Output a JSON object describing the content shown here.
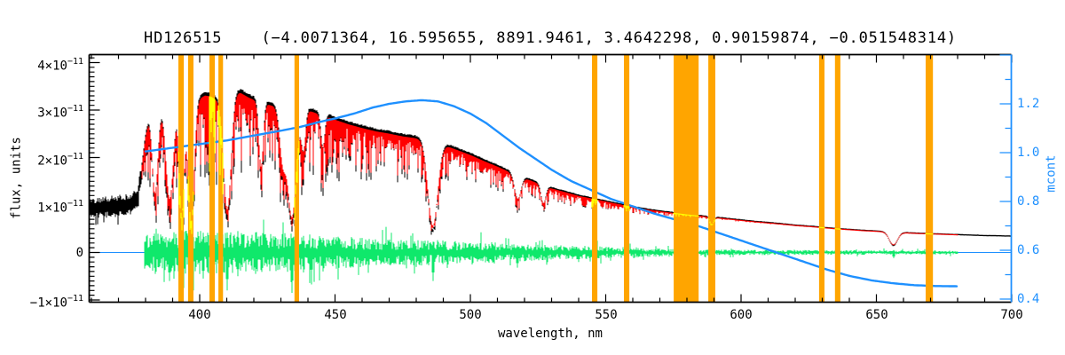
{
  "chart_data": {
    "type": "line",
    "title": "HD126515    (−4.0071364, 16.595655, 8891.9461, 3.4642298, 0.90159874, −0.051548314)",
    "xlabel": "wavelength, nm",
    "ylabel_left": "flux, units",
    "ylabel_right": "mcont",
    "xlim": [
      359,
      700
    ],
    "ylim_left_e11": [
      -1.06,
      4.18
    ],
    "ylim_right": [
      0.385,
      1.403
    ],
    "x_ticks": {
      "major": [
        400,
        450,
        500,
        550,
        600,
        650,
        700
      ],
      "minor_step": 10
    },
    "y_left_ticks": [
      {
        "v": 4,
        "base": "4×10",
        "sup": "−11"
      },
      {
        "v": 3,
        "base": "3×10",
        "sup": "−11"
      },
      {
        "v": 2,
        "base": "2×10",
        "sup": "−11"
      },
      {
        "v": 1,
        "base": "1×10",
        "sup": "−11"
      },
      {
        "v": 0,
        "base": "0",
        "sup": ""
      },
      {
        "v": -1,
        "base": "−1×10",
        "sup": "−11"
      }
    ],
    "y_right_ticks": [
      {
        "v": 1.2,
        "label": "1.2"
      },
      {
        "v": 1.0,
        "label": "1.0"
      },
      {
        "v": 0.8,
        "label": "0.8"
      },
      {
        "v": 0.6,
        "label": "0.6"
      },
      {
        "v": 0.4,
        "label": "0.4"
      }
    ],
    "colors": {
      "observed": "#000000",
      "model": "#FF0000",
      "residual": "#0FE86B",
      "mcont": "#1E90FF",
      "mask_band": "#FFA500",
      "mask_overlay": "#FFFF00",
      "axis": "#000000",
      "right_axis": "#1E90FF",
      "background": "#FFFFFF"
    },
    "series": {
      "observed": {
        "range_nm": [
          359,
          700
        ],
        "continuum_e11": [
          [
            360,
            0.93
          ],
          [
            364,
            0.95
          ],
          [
            368,
            0.97
          ],
          [
            372,
            1.0
          ],
          [
            375,
            1.04
          ],
          [
            377,
            1.15
          ],
          [
            378,
            1.55
          ],
          [
            379,
            2.05
          ],
          [
            380,
            2.5
          ],
          [
            381,
            2.8
          ],
          [
            382,
            2.92
          ],
          [
            384,
            2.96
          ],
          [
            386,
            3.04
          ],
          [
            388,
            3.08
          ],
          [
            390,
            3.1
          ],
          [
            392,
            3.14
          ],
          [
            394,
            3.16
          ],
          [
            396,
            3.2
          ],
          [
            398,
            3.26
          ],
          [
            400,
            3.32
          ],
          [
            402,
            3.38
          ],
          [
            404,
            3.36
          ],
          [
            406,
            3.3
          ],
          [
            408,
            3.34
          ],
          [
            411,
            3.36
          ],
          [
            413,
            3.46
          ],
          [
            415,
            3.44
          ],
          [
            418,
            3.34
          ],
          [
            421,
            3.26
          ],
          [
            424,
            3.2
          ],
          [
            427,
            3.16
          ],
          [
            430,
            3.1
          ],
          [
            434,
            3.06
          ],
          [
            438,
            3.1
          ],
          [
            442,
            3.02
          ],
          [
            446,
            2.94
          ],
          [
            450,
            2.86
          ],
          [
            455,
            2.76
          ],
          [
            460,
            2.68
          ],
          [
            465,
            2.61
          ],
          [
            470,
            2.56
          ],
          [
            475,
            2.5
          ],
          [
            480,
            2.46
          ],
          [
            486,
            2.42
          ],
          [
            490,
            2.32
          ],
          [
            495,
            2.21
          ],
          [
            500,
            2.1
          ],
          [
            505,
            1.97
          ],
          [
            510,
            1.85
          ],
          [
            515,
            1.72
          ],
          [
            520,
            1.6
          ],
          [
            525,
            1.49
          ],
          [
            530,
            1.38
          ],
          [
            535,
            1.3
          ],
          [
            540,
            1.22
          ],
          [
            545,
            1.16
          ],
          [
            550,
            1.1
          ],
          [
            555,
            1.04
          ],
          [
            560,
            0.98
          ],
          [
            565,
            0.93
          ],
          [
            570,
            0.89
          ],
          [
            575,
            0.855
          ],
          [
            580,
            0.82
          ],
          [
            585,
            0.79
          ],
          [
            590,
            0.76
          ],
          [
            595,
            0.73
          ],
          [
            600,
            0.7
          ],
          [
            605,
            0.67
          ],
          [
            610,
            0.645
          ],
          [
            615,
            0.62
          ],
          [
            620,
            0.59
          ],
          [
            625,
            0.57
          ],
          [
            630,
            0.545
          ],
          [
            635,
            0.52
          ],
          [
            640,
            0.5
          ],
          [
            645,
            0.48
          ],
          [
            650,
            0.465
          ],
          [
            655,
            0.45
          ],
          [
            660,
            0.435
          ],
          [
            665,
            0.42
          ],
          [
            670,
            0.41
          ],
          [
            675,
            0.4
          ],
          [
            680,
            0.39
          ],
          [
            685,
            0.38
          ],
          [
            690,
            0.37
          ],
          [
            695,
            0.365
          ],
          [
            700,
            0.36
          ]
        ],
        "absorption_lines": [
          [
            383.5,
            0.6,
            1.0
          ],
          [
            388.9,
            0.66,
            1.3
          ],
          [
            393.37,
            0.8,
            0.9
          ],
          [
            396.85,
            0.84,
            1.1
          ],
          [
            410.17,
            0.76,
            1.4
          ],
          [
            422.67,
            0.45,
            0.8
          ],
          [
            430.8,
            0.38,
            1.2
          ],
          [
            434.05,
            0.79,
            1.6
          ],
          [
            438.3,
            0.3,
            0.8
          ],
          [
            445.5,
            0.25,
            0.7
          ],
          [
            486.13,
            0.8,
            1.8
          ],
          [
            517.5,
            0.32,
            1.2
          ],
          [
            527.0,
            0.28,
            0.9
          ],
          [
            589.2,
            0.22,
            0.7
          ],
          [
            656.28,
            0.64,
            1.5
          ]
        ],
        "line_forest_maxdepth": [
          [
            378,
            0.62
          ],
          [
            395,
            0.62
          ],
          [
            410,
            0.6
          ],
          [
            425,
            0.55
          ],
          [
            440,
            0.5
          ],
          [
            460,
            0.45
          ],
          [
            480,
            0.4
          ],
          [
            500,
            0.34
          ],
          [
            520,
            0.28
          ],
          [
            540,
            0.22
          ],
          [
            560,
            0.16
          ],
          [
            580,
            0.1
          ],
          [
            600,
            0.07
          ],
          [
            620,
            0.055
          ],
          [
            640,
            0.05
          ],
          [
            660,
            0.045
          ],
          [
            680,
            0.04
          ],
          [
            700,
            0.035
          ]
        ],
        "blue_edge_noise_band_e11": {
          "range_nm": [
            359,
            378.3
          ],
          "half_width": 0.17
        }
      },
      "model": {
        "range_nm": [
          378.5,
          680
        ],
        "continuum_scale": 0.978,
        "forest_scale": 0.83
      },
      "residual": {
        "range_nm": [
          379.4,
          680
        ],
        "zero_e11": 0,
        "amplitude_e11": [
          [
            379,
            0.28
          ],
          [
            385,
            0.31
          ],
          [
            395,
            0.34
          ],
          [
            405,
            0.34
          ],
          [
            415,
            0.33
          ],
          [
            425,
            0.31
          ],
          [
            435,
            0.3
          ],
          [
            445,
            0.27
          ],
          [
            455,
            0.24
          ],
          [
            465,
            0.22
          ],
          [
            475,
            0.21
          ],
          [
            485,
            0.2
          ],
          [
            495,
            0.18
          ],
          [
            505,
            0.165
          ],
          [
            515,
            0.15
          ],
          [
            525,
            0.13
          ],
          [
            535,
            0.11
          ],
          [
            545,
            0.1
          ],
          [
            555,
            0.085
          ],
          [
            565,
            0.07
          ],
          [
            575,
            0.06
          ],
          [
            585,
            0.05
          ],
          [
            595,
            0.045
          ],
          [
            605,
            0.042
          ],
          [
            615,
            0.04
          ],
          [
            630,
            0.038
          ],
          [
            650,
            0.035
          ],
          [
            680,
            0.03
          ]
        ],
        "spikes_nm_up_down_e11": [
          [
            383.5,
            0.25,
            0.45
          ],
          [
            388.9,
            0.3,
            0.6
          ],
          [
            393.4,
            0.45,
            0.55
          ],
          [
            396.9,
            0.5,
            0.95
          ],
          [
            401.2,
            0.4,
            0.55
          ],
          [
            405.0,
            0.35,
            0.55
          ],
          [
            410.2,
            0.42,
            0.8
          ],
          [
            414.2,
            0.45,
            0.5
          ],
          [
            420.5,
            0.3,
            0.45
          ],
          [
            434.0,
            0.3,
            0.85
          ],
          [
            438.2,
            0.35,
            0.42
          ],
          [
            445.4,
            0.3,
            0.4
          ],
          [
            486.1,
            0.2,
            0.6
          ],
          [
            517.5,
            0.15,
            0.32
          ],
          [
            540,
            0.1,
            0.2
          ],
          [
            656.3,
            0.05,
            0.12
          ]
        ]
      },
      "mcont": {
        "range_nm": [
          380,
          680
        ],
        "points": [
          [
            380,
            1.005
          ],
          [
            390,
            1.02
          ],
          [
            400,
            1.035
          ],
          [
            410,
            1.05
          ],
          [
            420,
            1.07
          ],
          [
            430,
            1.09
          ],
          [
            437,
            1.105
          ],
          [
            444,
            1.125
          ],
          [
            450,
            1.14
          ],
          [
            457,
            1.16
          ],
          [
            464,
            1.185
          ],
          [
            470,
            1.2
          ],
          [
            476,
            1.21
          ],
          [
            482,
            1.215
          ],
          [
            488,
            1.21
          ],
          [
            494,
            1.19
          ],
          [
            500,
            1.16
          ],
          [
            506,
            1.12
          ],
          [
            512,
            1.07
          ],
          [
            518,
            1.02
          ],
          [
            524,
            0.975
          ],
          [
            530,
            0.93
          ],
          [
            537,
            0.885
          ],
          [
            545,
            0.845
          ],
          [
            552,
            0.81
          ],
          [
            560,
            0.78
          ],
          [
            568,
            0.75
          ],
          [
            576,
            0.725
          ],
          [
            584,
            0.7
          ],
          [
            592,
            0.67
          ],
          [
            600,
            0.64
          ],
          [
            608,
            0.61
          ],
          [
            616,
            0.58
          ],
          [
            624,
            0.55
          ],
          [
            632,
            0.52
          ],
          [
            640,
            0.495
          ],
          [
            648,
            0.477
          ],
          [
            656,
            0.465
          ],
          [
            664,
            0.457
          ],
          [
            672,
            0.4535
          ],
          [
            680,
            0.4525
          ]
        ]
      },
      "zero_line": {
        "value_e11": 0,
        "range_nm": [
          359,
          700
        ]
      }
    },
    "masked_regions_nm": [
      [
        392.1,
        394.1
      ],
      [
        395.7,
        397.7
      ],
      [
        403.6,
        405.6
      ],
      [
        406.9,
        408.6
      ],
      [
        435.0,
        436.7
      ],
      [
        544.9,
        546.9
      ],
      [
        556.7,
        558.7
      ],
      [
        575.1,
        584.3
      ],
      [
        587.9,
        590.5
      ],
      [
        628.8,
        630.8
      ],
      [
        634.7,
        636.7
      ],
      [
        668.2,
        670.9
      ]
    ]
  }
}
